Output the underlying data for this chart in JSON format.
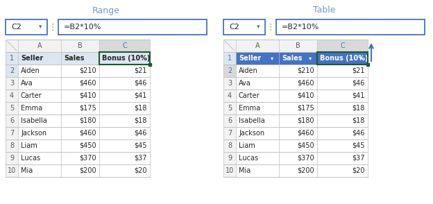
{
  "title_left": "Range",
  "title_right": "Table",
  "formula_text": "=B2*10%",
  "cell_ref": "C2",
  "headers": [
    "Seller",
    "Sales",
    "Bonus (10%)"
  ],
  "rows": [
    [
      "Aiden",
      "$210",
      "$21"
    ],
    [
      "Ava",
      "$460",
      "$46"
    ],
    [
      "Carter",
      "$410",
      "$41"
    ],
    [
      "Emma",
      "$175",
      "$18"
    ],
    [
      "Isabella",
      "$180",
      "$18"
    ],
    [
      "Jackson",
      "$460",
      "$46"
    ],
    [
      "Liam",
      "$450",
      "$45"
    ],
    [
      "Lucas",
      "$370",
      "$37"
    ],
    [
      "Mia",
      "$200",
      "$20"
    ]
  ],
  "bg_white": "#ffffff",
  "bg_light_blue_header": "#dce6f1",
  "bg_table_header": "#4472c4",
  "bg_col_selected": "#d9d9d9",
  "bg_row2_range": "#dce6f1",
  "grid_color": "#bfbfbf",
  "grid_color_table": "#9dc3e6",
  "text_dark": "#262626",
  "text_blue_row": "#4472c4",
  "text_white": "#ffffff",
  "active_cell_border": "#215732",
  "title_color": "#7399c6",
  "row_num_color": "#595959",
  "col_letter_color": "#595959",
  "col_letter_selected_color": "#4472c4",
  "formula_border_color": "#4472c4",
  "arrow_color": "#4472c4"
}
